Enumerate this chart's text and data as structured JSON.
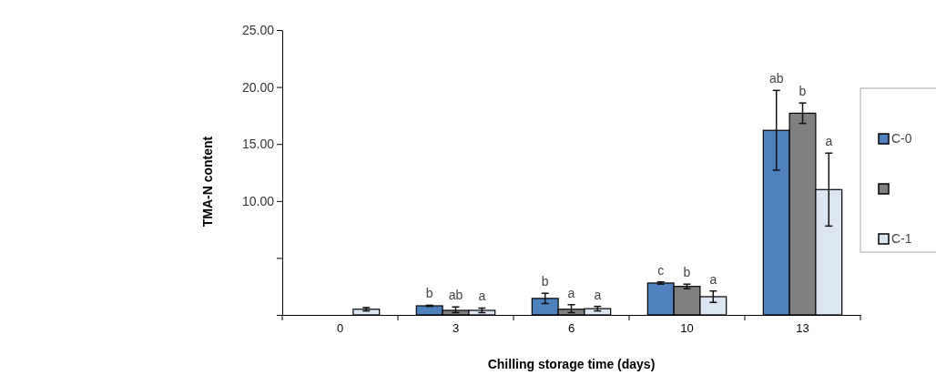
{
  "chart_data": {
    "type": "bar",
    "xlabel": "Chilling storage time (days)",
    "ylabel": "TMA-N content",
    "categories": [
      "0",
      "3",
      "6",
      "10",
      "13"
    ],
    "series": [
      {
        "name": "C-0",
        "color": "#4f81bd",
        "values": [
          null,
          0.8,
          1.45,
          2.8,
          16.2
        ],
        "errors": [
          null,
          0.05,
          0.45,
          0.1,
          3.5
        ]
      },
      {
        "color": "#808080",
        "values": [
          null,
          0.4,
          0.5,
          2.5,
          17.7
        ],
        "errors": [
          null,
          [
            0.2,
            0.7
          ],
          [
            0.2,
            0.9
          ],
          0.2,
          0.9
        ]
      },
      {
        "name": "C-1",
        "color": "#dce6f2",
        "values": [
          0.5,
          0.4,
          0.55,
          1.6,
          11.0
        ],
        "errors": [
          0.15,
          0.2,
          0.2,
          0.5,
          3.2
        ]
      }
    ],
    "ylim": [
      0,
      25
    ],
    "yticks": [
      {
        "value": 0,
        "label": null
      },
      {
        "value": 5,
        "label": null
      },
      {
        "value": 10,
        "label": "10.00"
      },
      {
        "value": 15,
        "label": "15.00"
      },
      {
        "value": 20,
        "label": "20.00"
      },
      {
        "value": 25,
        "label": "25.00"
      }
    ],
    "annotations": [
      "b",
      "ab",
      "a",
      "b",
      "a",
      "a",
      "c",
      "b",
      "a",
      "ab",
      "b",
      "a"
    ],
    "legend": "right",
    "grid": false
  }
}
